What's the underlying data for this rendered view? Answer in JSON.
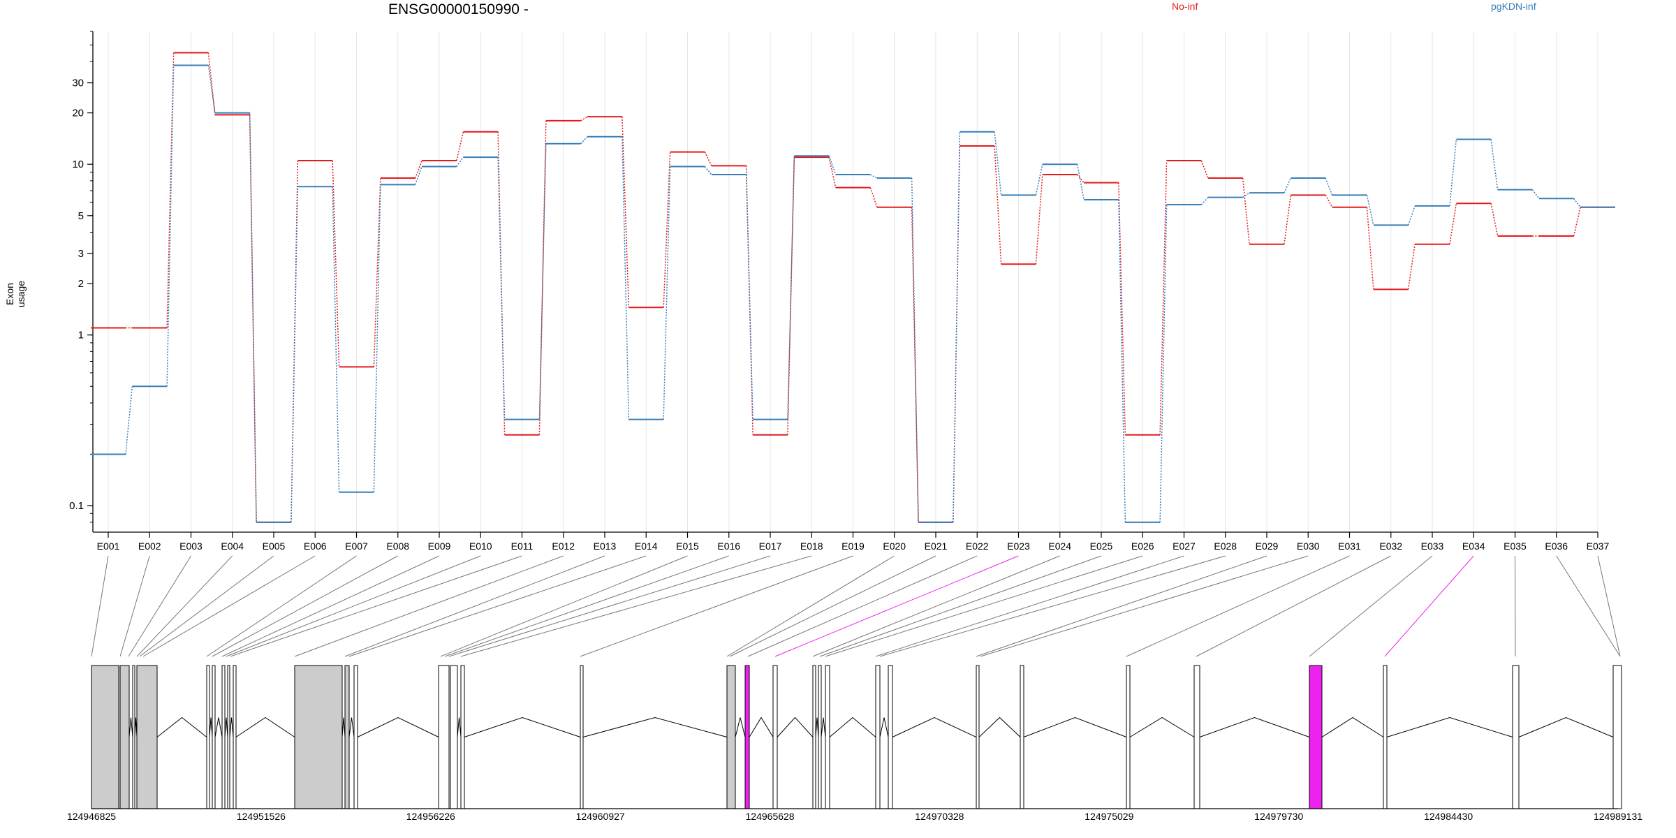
{
  "title": "ENSG00000150990 -",
  "ylabel": "Exon usage",
  "legend": [
    {
      "label": "No-inf",
      "color": "#e41a1c"
    },
    {
      "label": "pgKDN-inf",
      "color": "#377eb8"
    }
  ],
  "chart_data": {
    "type": "line",
    "title": "ENSG00000150990 -",
    "xlabel": "",
    "ylabel": "Exon usage",
    "yscale": "log",
    "yticks": [
      0.1,
      1,
      2,
      3,
      5,
      10,
      20,
      30
    ],
    "ylim": [
      0.07,
      60
    ],
    "grid": "vertical",
    "legend_position": "top",
    "categories": [
      "E001",
      "E002",
      "E003",
      "E004",
      "E005",
      "E006",
      "E007",
      "E008",
      "E009",
      "E010",
      "E011",
      "E012",
      "E013",
      "E014",
      "E015",
      "E016",
      "E017",
      "E018",
      "E019",
      "E020",
      "E021",
      "E022",
      "E023",
      "E024",
      "E025",
      "E026",
      "E027",
      "E028",
      "E029",
      "E030",
      "E031",
      "E032",
      "E033",
      "E034",
      "E035",
      "E036",
      "E037"
    ],
    "series": [
      {
        "name": "No-inf",
        "color": "#e41a1c",
        "values": [
          1.1,
          1.1,
          45,
          19.5,
          0.08,
          10.5,
          0.65,
          8.3,
          10.5,
          15.5,
          0.26,
          18,
          19,
          1.45,
          11.8,
          9.8,
          0.26,
          11,
          7.3,
          5.6,
          0.08,
          12.8,
          2.6,
          8.7,
          7.8,
          0.26,
          10.5,
          8.3,
          3.4,
          6.6,
          5.6,
          1.85,
          3.4,
          5.9,
          3.8,
          3.8,
          5.6
        ]
      },
      {
        "name": "pgKDN-inf",
        "color": "#377eb8",
        "values": [
          0.2,
          0.5,
          38,
          20,
          0.08,
          7.4,
          0.12,
          7.6,
          9.7,
          11,
          0.32,
          13.2,
          14.5,
          0.32,
          9.7,
          8.7,
          0.32,
          11.2,
          8.7,
          8.3,
          0.08,
          15.5,
          6.6,
          10,
          6.2,
          0.08,
          5.8,
          6.4,
          6.8,
          8.3,
          6.6,
          4.4,
          5.7,
          14,
          7.1,
          6.3,
          5.6
        ]
      }
    ]
  },
  "gene_model": {
    "coord_ticks": [
      "124946825",
      "124951526",
      "124956226",
      "124960927",
      "124965628",
      "124970328",
      "124975029",
      "124979730",
      "124984430",
      "124989131"
    ],
    "highlight_color": "#ee22ee",
    "highlighted_exons": [
      "E023",
      "E034"
    ]
  }
}
